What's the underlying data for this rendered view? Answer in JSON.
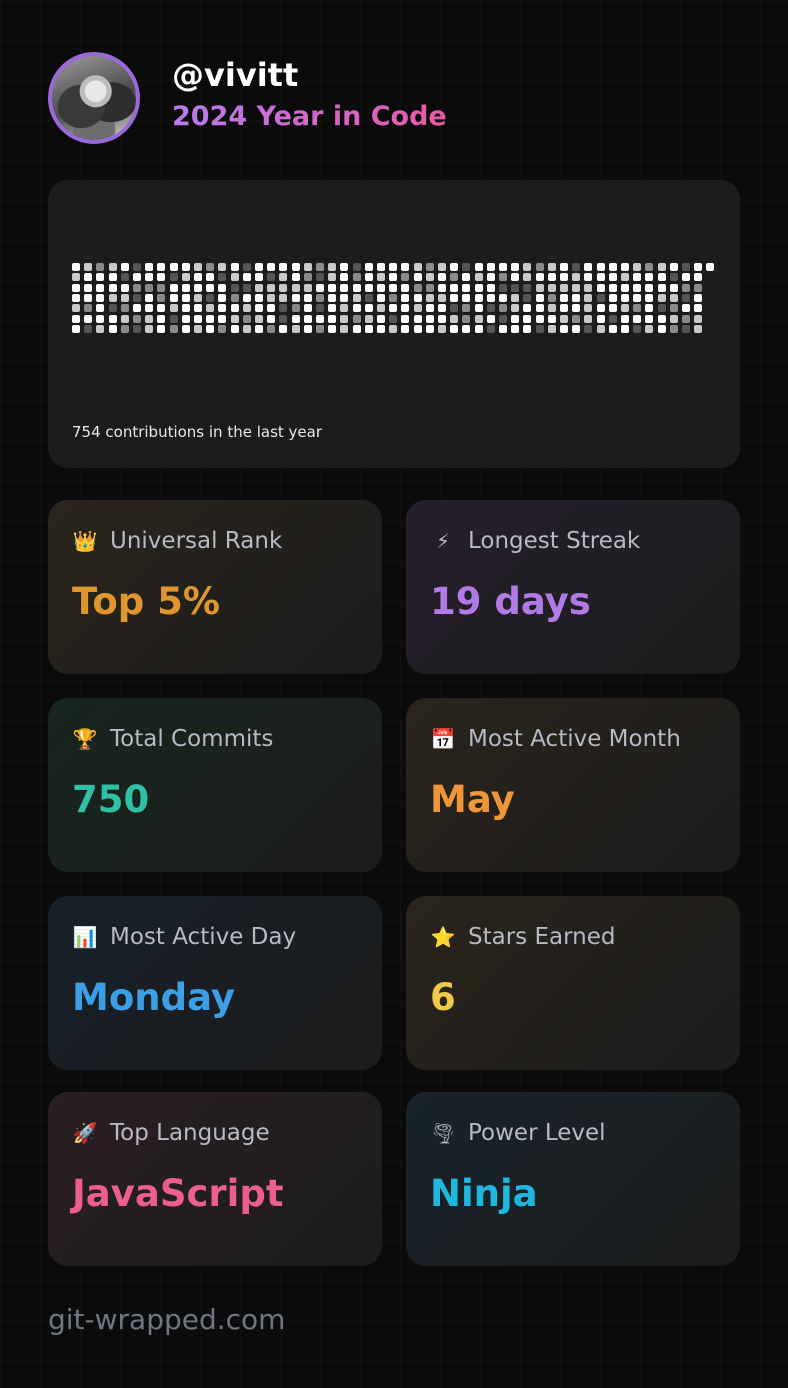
{
  "header": {
    "username": "@vivitt",
    "subtitle": "2024 Year in Code"
  },
  "contributions": {
    "caption": "754 contributions in the last year",
    "colors": {
      "light": "#ffffff",
      "mid": "#c9c9c9",
      "dark": "#8a8a8a",
      "darker": "#555555"
    }
  },
  "stats": [
    {
      "icon": "crown-icon",
      "glyph": "👑",
      "label": "Universal Rank",
      "value": "Top 5%",
      "color": "#e0962f",
      "bg": "#2a241c"
    },
    {
      "icon": "lightning-icon",
      "glyph": "⚡",
      "label": "Longest Streak",
      "value": "19 days",
      "color": "#b07be6",
      "bg": "#261f2c"
    },
    {
      "icon": "trophy-icon",
      "glyph": "🏆",
      "label": "Total Commits",
      "value": "750",
      "color": "#2ec1a5",
      "bg": "#18261f"
    },
    {
      "icon": "calendar-icon",
      "glyph": "📅",
      "label": "Most Active Month",
      "value": "May",
      "color": "#ef963a",
      "bg": "#2a241c"
    },
    {
      "icon": "bar-chart-icon",
      "glyph": "📊",
      "label": "Most Active Day",
      "value": "Monday",
      "color": "#3c9fe6",
      "bg": "#172029"
    },
    {
      "icon": "star-icon",
      "glyph": "⭐",
      "label": "Stars Earned",
      "value": "6",
      "color": "#f0c94a",
      "bg": "#2a241c"
    },
    {
      "icon": "rocket-icon",
      "glyph": "🚀",
      "label": "Top Language",
      "value": "JavaScript",
      "color": "#ec5f8c",
      "bg": "#2a1f22"
    },
    {
      "icon": "tornado-icon",
      "glyph": "🌪",
      "label": "Power Level",
      "value": "Ninja",
      "color": "#1fb7dd",
      "bg": "#18232a"
    }
  ],
  "footer": {
    "text": "git-wrapped.com"
  }
}
